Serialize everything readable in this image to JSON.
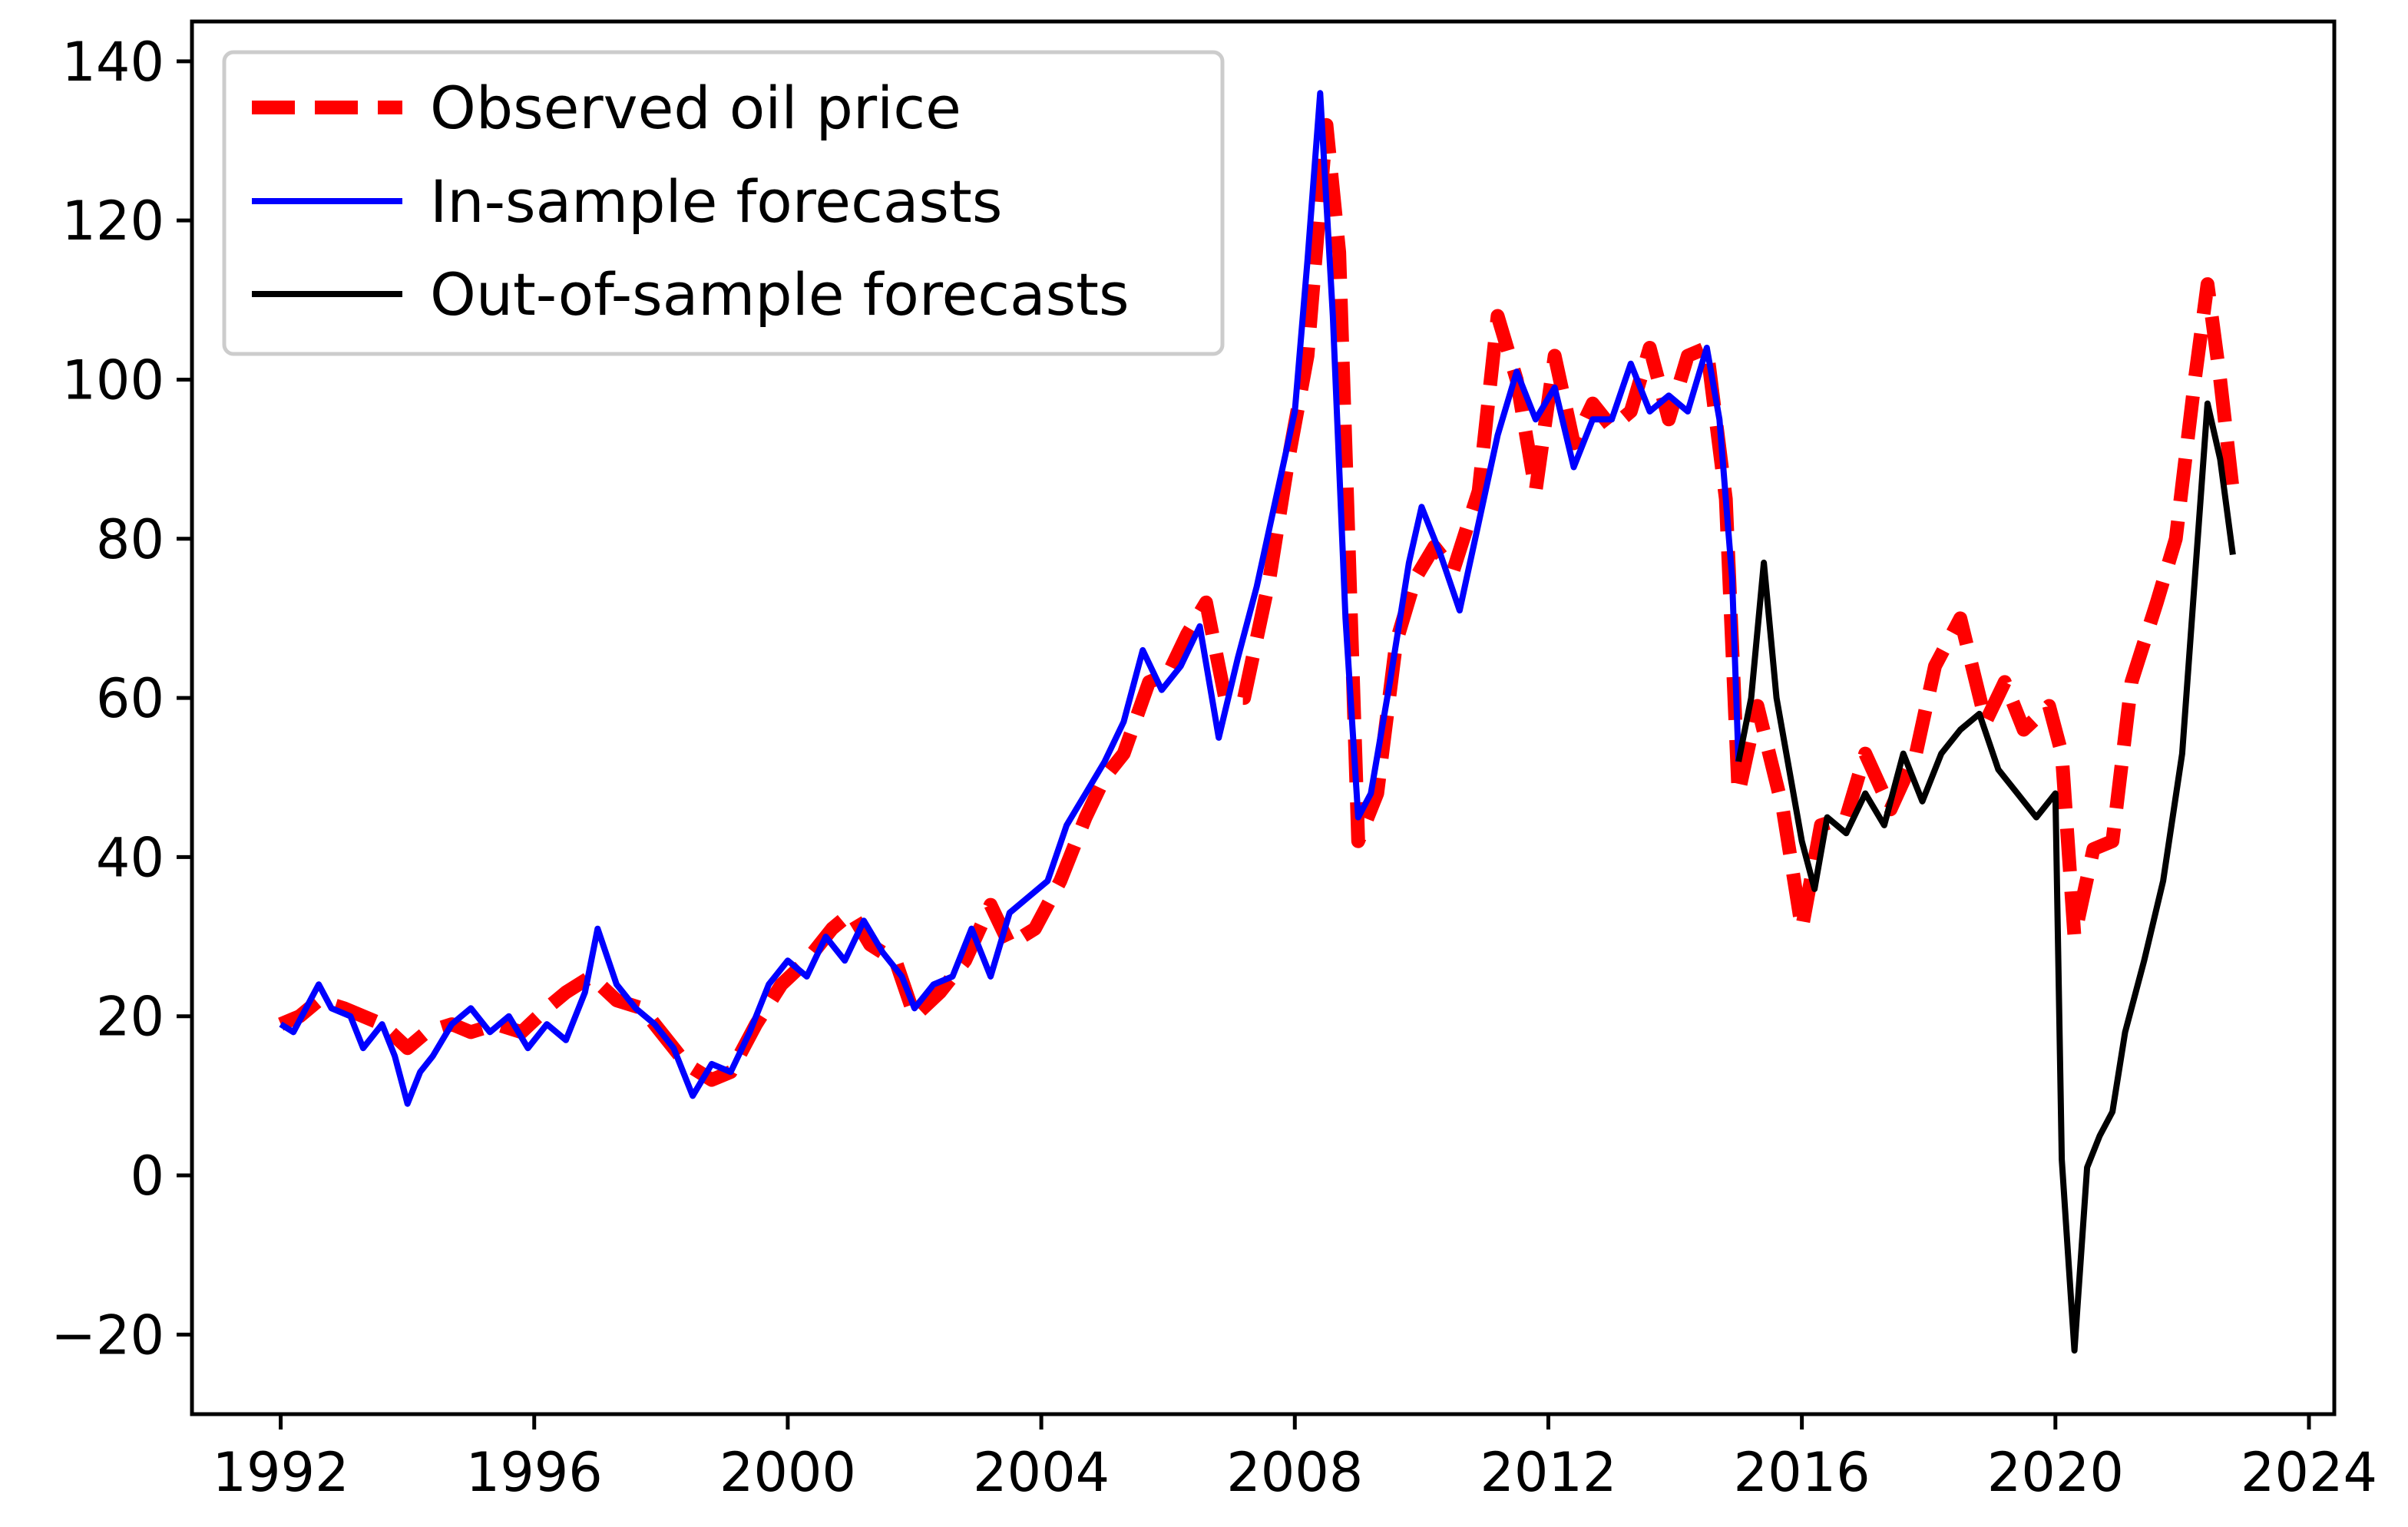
{
  "chart_data": {
    "type": "line",
    "title": "",
    "xlabel": "",
    "ylabel": "",
    "xlim": [
      1990.6,
      2024.4
    ],
    "ylim": [
      -30,
      145
    ],
    "x_ticks": [
      1992,
      1996,
      2000,
      2004,
      2008,
      2012,
      2016,
      2020,
      2024
    ],
    "x_tick_labels": [
      "1992",
      "1996",
      "2000",
      "2004",
      "2008",
      "2012",
      "2016",
      "2020",
      "2024"
    ],
    "y_ticks": [
      140,
      120,
      100,
      80,
      60,
      40,
      20,
      0,
      -20
    ],
    "y_tick_labels": [
      "140",
      "120",
      "100",
      "80",
      "60",
      "40",
      "20",
      "0",
      "−20"
    ],
    "grid": false,
    "legend_position": "top-left",
    "series": [
      {
        "name": "Observed oil price",
        "color": "#ff0000",
        "style": "dashed",
        "points": [
          [
            1992.0,
            19
          ],
          [
            1992.3,
            20
          ],
          [
            1992.6,
            22
          ],
          [
            1993.0,
            21
          ],
          [
            1993.3,
            20
          ],
          [
            1993.6,
            19
          ],
          [
            1994.0,
            16
          ],
          [
            1994.3,
            18
          ],
          [
            1994.7,
            19
          ],
          [
            1995.0,
            18
          ],
          [
            1995.4,
            19
          ],
          [
            1995.8,
            18
          ],
          [
            1996.2,
            21
          ],
          [
            1996.5,
            23
          ],
          [
            1996.9,
            25
          ],
          [
            1997.3,
            22
          ],
          [
            1997.7,
            21
          ],
          [
            1998.0,
            18
          ],
          [
            1998.4,
            14
          ],
          [
            1998.8,
            12
          ],
          [
            1999.1,
            13
          ],
          [
            1999.5,
            19
          ],
          [
            1999.9,
            24
          ],
          [
            2000.3,
            27
          ],
          [
            2000.7,
            31
          ],
          [
            2001.0,
            33
          ],
          [
            2001.3,
            29
          ],
          [
            2001.7,
            27
          ],
          [
            2002.0,
            20
          ],
          [
            2002.4,
            23
          ],
          [
            2002.8,
            27
          ],
          [
            2003.2,
            34
          ],
          [
            2003.5,
            29
          ],
          [
            2003.9,
            31
          ],
          [
            2004.3,
            37
          ],
          [
            2004.7,
            45
          ],
          [
            2005.0,
            50
          ],
          [
            2005.3,
            53
          ],
          [
            2005.7,
            62
          ],
          [
            2006.0,
            63
          ],
          [
            2006.3,
            68
          ],
          [
            2006.6,
            72
          ],
          [
            2006.9,
            60
          ],
          [
            2007.2,
            60
          ],
          [
            2007.6,
            75
          ],
          [
            2007.9,
            90
          ],
          [
            2008.2,
            103
          ],
          [
            2008.5,
            132
          ],
          [
            2008.7,
            116
          ],
          [
            2009.0,
            42
          ],
          [
            2009.3,
            48
          ],
          [
            2009.6,
            67
          ],
          [
            2009.9,
            75
          ],
          [
            2010.2,
            79
          ],
          [
            2010.5,
            76
          ],
          [
            2010.9,
            86
          ],
          [
            2011.2,
            108
          ],
          [
            2011.5,
            100
          ],
          [
            2011.8,
            86
          ],
          [
            2012.1,
            103
          ],
          [
            2012.4,
            92
          ],
          [
            2012.7,
            97
          ],
          [
            2013.0,
            94
          ],
          [
            2013.3,
            96
          ],
          [
            2013.6,
            104
          ],
          [
            2013.9,
            95
          ],
          [
            2014.2,
            103
          ],
          [
            2014.5,
            104
          ],
          [
            2014.8,
            85
          ],
          [
            2015.0,
            48
          ],
          [
            2015.3,
            59
          ],
          [
            2015.7,
            46
          ],
          [
            2016.0,
            31
          ],
          [
            2016.3,
            44
          ],
          [
            2016.7,
            45
          ],
          [
            2017.0,
            53
          ],
          [
            2017.4,
            46
          ],
          [
            2017.8,
            53
          ],
          [
            2018.1,
            64
          ],
          [
            2018.5,
            70
          ],
          [
            2018.9,
            57
          ],
          [
            2019.2,
            62
          ],
          [
            2019.5,
            56
          ],
          [
            2019.9,
            59
          ],
          [
            2020.1,
            53
          ],
          [
            2020.3,
            30
          ],
          [
            2020.6,
            41
          ],
          [
            2020.9,
            42
          ],
          [
            2021.2,
            62
          ],
          [
            2021.6,
            72
          ],
          [
            2021.9,
            80
          ],
          [
            2022.2,
            100
          ],
          [
            2022.4,
            112
          ],
          [
            2022.6,
            100
          ],
          [
            2022.8,
            86
          ]
        ]
      },
      {
        "name": "In-sample forecasts",
        "color": "#0000ff",
        "style": "solid",
        "points": [
          [
            1992.0,
            19
          ],
          [
            1992.2,
            18
          ],
          [
            1992.4,
            21
          ],
          [
            1992.6,
            24
          ],
          [
            1992.8,
            21
          ],
          [
            1993.1,
            20
          ],
          [
            1993.3,
            16
          ],
          [
            1993.6,
            19
          ],
          [
            1993.8,
            15
          ],
          [
            1994.0,
            9
          ],
          [
            1994.2,
            13
          ],
          [
            1994.4,
            15
          ],
          [
            1994.7,
            19
          ],
          [
            1995.0,
            21
          ],
          [
            1995.3,
            18
          ],
          [
            1995.6,
            20
          ],
          [
            1995.9,
            16
          ],
          [
            1996.2,
            19
          ],
          [
            1996.5,
            17
          ],
          [
            1996.8,
            23
          ],
          [
            1997.0,
            31
          ],
          [
            1997.3,
            24
          ],
          [
            1997.6,
            21
          ],
          [
            1997.9,
            19
          ],
          [
            1998.2,
            16
          ],
          [
            1998.5,
            10
          ],
          [
            1998.8,
            14
          ],
          [
            1999.1,
            13
          ],
          [
            1999.4,
            18
          ],
          [
            1999.7,
            24
          ],
          [
            2000.0,
            27
          ],
          [
            2000.3,
            25
          ],
          [
            2000.6,
            30
          ],
          [
            2000.9,
            27
          ],
          [
            2001.2,
            32
          ],
          [
            2001.5,
            28
          ],
          [
            2001.8,
            25
          ],
          [
            2002.0,
            21
          ],
          [
            2002.3,
            24
          ],
          [
            2002.6,
            25
          ],
          [
            2002.9,
            31
          ],
          [
            2003.2,
            25
          ],
          [
            2003.5,
            33
          ],
          [
            2003.8,
            35
          ],
          [
            2004.1,
            37
          ],
          [
            2004.4,
            44
          ],
          [
            2004.7,
            48
          ],
          [
            2005.0,
            52
          ],
          [
            2005.3,
            57
          ],
          [
            2005.6,
            66
          ],
          [
            2005.9,
            61
          ],
          [
            2006.2,
            64
          ],
          [
            2006.5,
            69
          ],
          [
            2006.8,
            55
          ],
          [
            2007.1,
            65
          ],
          [
            2007.4,
            74
          ],
          [
            2007.7,
            85
          ],
          [
            2008.0,
            96
          ],
          [
            2008.2,
            115
          ],
          [
            2008.4,
            136
          ],
          [
            2008.6,
            108
          ],
          [
            2008.8,
            70
          ],
          [
            2009.0,
            45
          ],
          [
            2009.2,
            48
          ],
          [
            2009.5,
            62
          ],
          [
            2009.8,
            77
          ],
          [
            2010.0,
            84
          ],
          [
            2010.3,
            78
          ],
          [
            2010.6,
            71
          ],
          [
            2010.9,
            82
          ],
          [
            2011.2,
            93
          ],
          [
            2011.5,
            101
          ],
          [
            2011.8,
            95
          ],
          [
            2012.1,
            99
          ],
          [
            2012.4,
            89
          ],
          [
            2012.7,
            95
          ],
          [
            2013.0,
            95
          ],
          [
            2013.3,
            102
          ],
          [
            2013.6,
            96
          ],
          [
            2013.9,
            98
          ],
          [
            2014.2,
            96
          ],
          [
            2014.5,
            104
          ],
          [
            2014.7,
            95
          ],
          [
            2014.9,
            75
          ],
          [
            2015.0,
            52
          ]
        ]
      },
      {
        "name": "Out-of-sample forecasts",
        "color": "#000000",
        "style": "solid",
        "points": [
          [
            2015.0,
            52
          ],
          [
            2015.2,
            60
          ],
          [
            2015.4,
            77
          ],
          [
            2015.6,
            60
          ],
          [
            2015.8,
            51
          ],
          [
            2016.0,
            42
          ],
          [
            2016.2,
            36
          ],
          [
            2016.4,
            45
          ],
          [
            2016.7,
            43
          ],
          [
            2017.0,
            48
          ],
          [
            2017.3,
            44
          ],
          [
            2017.6,
            53
          ],
          [
            2017.9,
            47
          ],
          [
            2018.2,
            53
          ],
          [
            2018.5,
            56
          ],
          [
            2018.8,
            58
          ],
          [
            2019.1,
            51
          ],
          [
            2019.4,
            48
          ],
          [
            2019.7,
            45
          ],
          [
            2020.0,
            48
          ],
          [
            2020.1,
            2
          ],
          [
            2020.2,
            -10
          ],
          [
            2020.3,
            -22
          ],
          [
            2020.5,
            1
          ],
          [
            2020.7,
            5
          ],
          [
            2020.9,
            8
          ],
          [
            2021.1,
            18
          ],
          [
            2021.4,
            27
          ],
          [
            2021.7,
            37
          ],
          [
            2022.0,
            53
          ],
          [
            2022.2,
            75
          ],
          [
            2022.4,
            97
          ],
          [
            2022.6,
            90
          ],
          [
            2022.8,
            78
          ]
        ]
      }
    ]
  }
}
